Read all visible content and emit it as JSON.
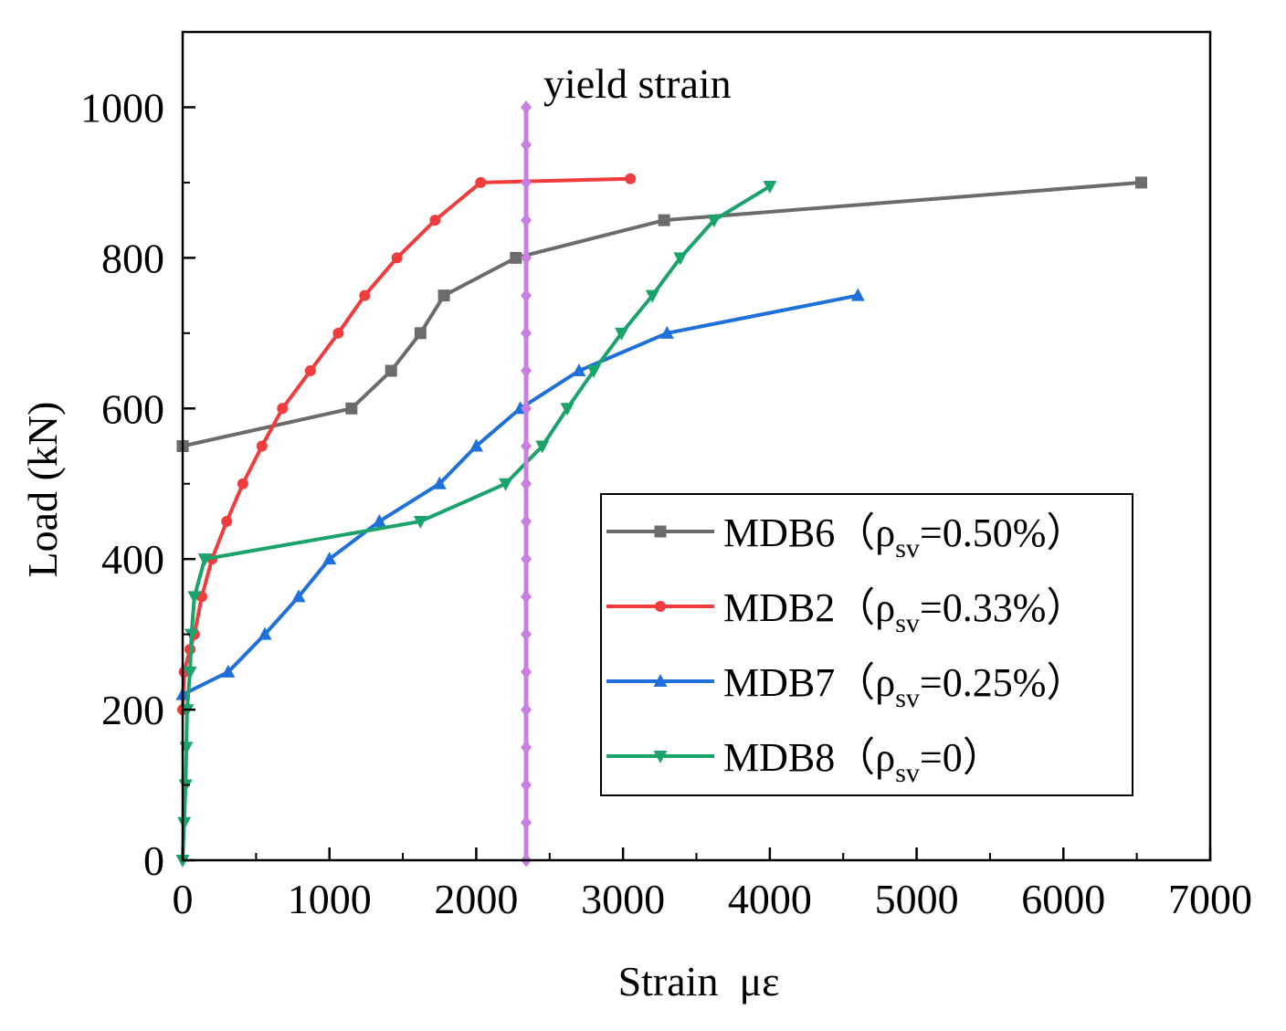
{
  "chart_data": {
    "type": "line",
    "xlabel": "Strain  με",
    "ylabel": "Load (kN)",
    "xlim": [
      0,
      7000
    ],
    "ylim": [
      0,
      1100
    ],
    "x_ticks": [
      0,
      1000,
      2000,
      3000,
      4000,
      5000,
      6000,
      7000
    ],
    "y_ticks": [
      0,
      200,
      400,
      600,
      800,
      1000
    ],
    "grid": false,
    "legend_position": "lower-right",
    "yield_line": {
      "label": "yield strain",
      "x": 2340,
      "y_range": [
        0,
        1000
      ],
      "color": "#c77fe0"
    },
    "series": [
      {
        "name": "MDB6（ρsv=0.50%）",
        "label_main": "MDB6（ρ",
        "label_sub": "sv",
        "label_tail": "=0.50%）",
        "color": "#6b6b6b",
        "marker": "square",
        "points": [
          [
            0,
            550
          ],
          [
            1150,
            600
          ],
          [
            1420,
            650
          ],
          [
            1620,
            700
          ],
          [
            1780,
            750
          ],
          [
            2270,
            800
          ],
          [
            3280,
            850
          ],
          [
            6530,
            900
          ]
        ]
      },
      {
        "name": "MDB2（ρsv=0.33%）",
        "label_main": "MDB2（ρ",
        "label_sub": "sv",
        "label_tail": "=0.33%）",
        "color": "#f03c3c",
        "marker": "circle",
        "points": [
          [
            0,
            200
          ],
          [
            10,
            250
          ],
          [
            50,
            280
          ],
          [
            80,
            300
          ],
          [
            130,
            350
          ],
          [
            200,
            400
          ],
          [
            300,
            450
          ],
          [
            410,
            500
          ],
          [
            540,
            550
          ],
          [
            680,
            600
          ],
          [
            870,
            650
          ],
          [
            1060,
            700
          ],
          [
            1240,
            750
          ],
          [
            1460,
            800
          ],
          [
            1720,
            850
          ],
          [
            2030,
            900
          ],
          [
            3050,
            905
          ]
        ]
      },
      {
        "name": "MDB7（ρsv=0.25%）",
        "label_main": "MDB7（ρ",
        "label_sub": "sv",
        "label_tail": "=0.25%）",
        "color": "#1f70d8",
        "marker": "triangle-up",
        "points": [
          [
            0,
            220
          ],
          [
            310,
            250
          ],
          [
            560,
            300
          ],
          [
            790,
            350
          ],
          [
            1000,
            400
          ],
          [
            1340,
            450
          ],
          [
            1750,
            500
          ],
          [
            2000,
            550
          ],
          [
            2300,
            600
          ],
          [
            2700,
            650
          ],
          [
            3300,
            700
          ],
          [
            4600,
            750
          ]
        ]
      },
      {
        "name": "MDB8（ρsv=0）",
        "label_main": "MDB8（ρ",
        "label_sub": "sv",
        "label_tail": "=0）",
        "color": "#1aa36a",
        "marker": "triangle-down",
        "points": [
          [
            0,
            0
          ],
          [
            10,
            50
          ],
          [
            20,
            100
          ],
          [
            25,
            150
          ],
          [
            30,
            200
          ],
          [
            50,
            250
          ],
          [
            60,
            300
          ],
          [
            80,
            350
          ],
          [
            150,
            400
          ],
          [
            1620,
            450
          ],
          [
            2200,
            500
          ],
          [
            2450,
            550
          ],
          [
            2620,
            600
          ],
          [
            2800,
            650
          ],
          [
            2990,
            700
          ],
          [
            3200,
            750
          ],
          [
            3390,
            800
          ],
          [
            3620,
            850
          ],
          [
            4000,
            895
          ]
        ]
      }
    ]
  }
}
